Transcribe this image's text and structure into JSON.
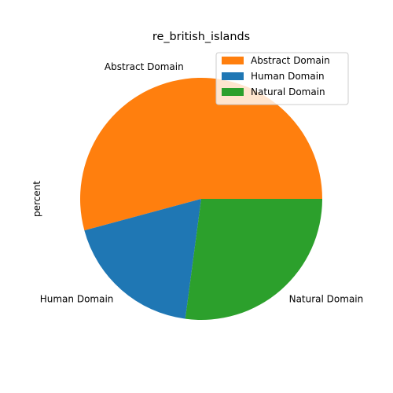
{
  "chart_data": {
    "type": "pie",
    "title": "re_british_islands",
    "ylabel": "percent",
    "start_angle_deg": 0,
    "direction": "counterclockwise",
    "legend_position": "upper right",
    "slices": [
      {
        "label": "Abstract Domain",
        "value": 54.2,
        "color": "#ff7f0e"
      },
      {
        "label": "Human Domain",
        "value": 18.7,
        "color": "#1f77b4"
      },
      {
        "label": "Natural Domain",
        "value": 27.1,
        "color": "#2ca02c"
      }
    ]
  }
}
